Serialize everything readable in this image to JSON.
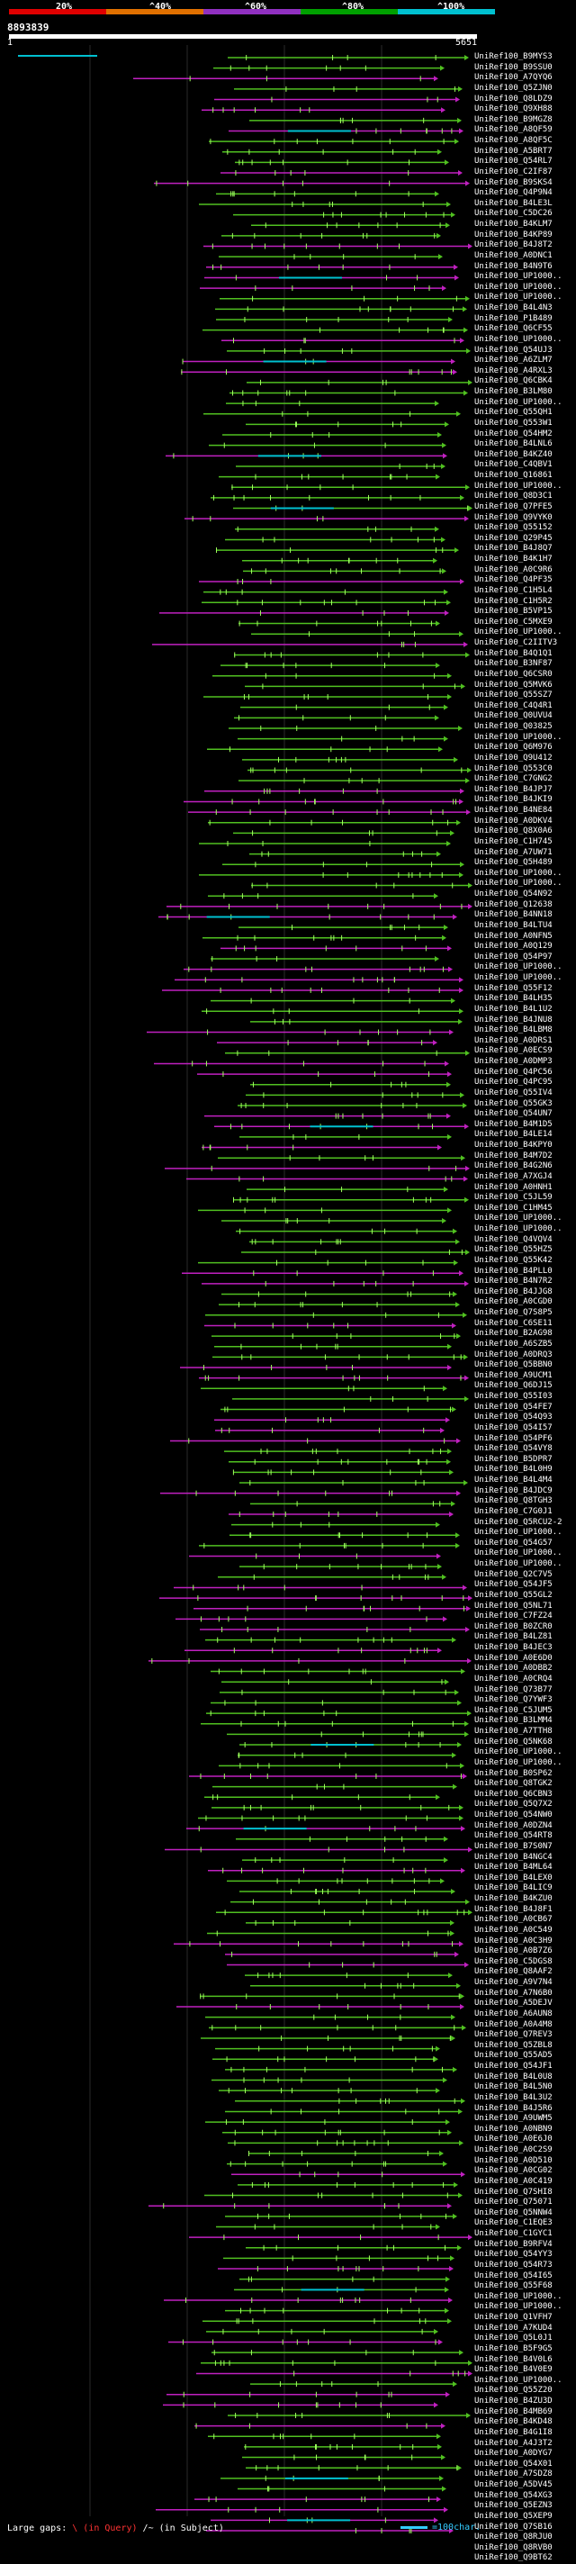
{
  "legend": {
    "labels": [
      "20%",
      "^40%",
      "^60%",
      "^80%",
      "^100%"
    ],
    "colors": [
      "#e00000",
      "#e07000",
      "#9030c0",
      "#00a000",
      "#00c0d0"
    ]
  },
  "query": {
    "id": "8893839",
    "start": "1",
    "end": "5651"
  },
  "hits": [
    "UniRef100_B9MYS3",
    "UniRef100_B9SSU0",
    "UniRef100_A7QYQ6",
    "UniRef100_Q5ZJN0",
    "UniRef100_Q8LDZ9",
    "UniRef100_Q9XH88",
    "UniRef100_B9MGZ8",
    "UniRef100_A8QF59",
    "UniRef100_A8QF5C",
    "UniRef100_A5BRT7",
    "UniRef100_Q54RL7",
    "UniRef100_C2IF87",
    "UniRef100_B9SKS4",
    "UniRef100_Q4P9N4",
    "UniRef100_B4LE3L",
    "UniRef100_C5DC26",
    "UniRef100_B4KLM7",
    "UniRef100_B4KP89",
    "UniRef100_B4J8T2",
    "UniRef100_A0DNC1",
    "UniRef100_B4N9T6",
    "UniRef100_UP1000..",
    "UniRef100_UP1000..",
    "UniRef100_UP1000..",
    "UniRef100_B4L4N3",
    "UniRef100_P1B489",
    "UniRef100_Q6CF55",
    "UniRef100_UP1000..",
    "UniRef100_Q54UJ3",
    "UniRef100_A6ZLM7",
    "UniRef100_A4RXL3",
    "UniRef100_Q6CBK4",
    "UniRef100_B3LM80",
    "UniRef100_UP1000..",
    "UniRef100_Q55QH1",
    "UniRef100_Q553W1",
    "UniRef100_Q54HM2",
    "UniRef100_B4LNL6",
    "UniRef100_B4KZ40",
    "UniRef100_C4QBV1",
    "UniRef100_Q16861",
    "UniRef100_UP1000..",
    "UniRef100_Q8D3C1",
    "UniRef100_Q7PFE5",
    "UniRef100_Q9VYK0",
    "UniRef100_Q55152",
    "UniRef100_Q29P45",
    "UniRef100_B4J8Q7",
    "UniRef100_B4K1H7",
    "UniRef100_A0C9R6",
    "UniRef100_Q4PF35",
    "UniRef100_C1H5L4",
    "UniRef100_C1H5R2",
    "UniRef100_B5VP15",
    "UniRef100_C5MXE9",
    "UniRef100_UP1000..",
    "UniRef100_C2IITV3",
    "UniRef100_B4Q1Q1",
    "UniRef100_B3NF87",
    "UniRef100_Q6CSR0",
    "UniRef100_Q5MVK6",
    "UniRef100_Q55SZ7",
    "UniRef100_C4Q4R1",
    "UniRef100_Q0UVU4",
    "UniRef100_Q03825",
    "UniRef100_UP1000..",
    "UniRef100_Q6M976",
    "UniRef100_Q9U412",
    "UniRef100_Q553C0",
    "UniRef100_C7GNG2",
    "UniRef100_B4JPJ7",
    "UniRef100_B4JKI9",
    "UniRef100_B4NE84",
    "UniRef100_A0DKV4",
    "UniRef100_Q8X0A6",
    "UniRef100_C1H745",
    "UniRef100_A7UW71",
    "UniRef100_Q5H489",
    "UniRef100_UP1000..",
    "UniRef100_UP1000..",
    "UniRef100_Q54N92",
    "UniRef100_Q12638",
    "UniRef100_B4NN18",
    "UniRef100_B4LTU4",
    "UniRef100_A0NFN5",
    "UniRef100_A0Q129",
    "UniRef100_Q54P97",
    "UniRef100_UP1000..",
    "UniRef100_UP1000..",
    "UniRef100_Q55F12",
    "UniRef100_B4LH35",
    "UniRef100_B4L1U2",
    "UniRef100_B4JNU8",
    "UniRef100_B4LBM8",
    "UniRef100_A0DRS1",
    "UniRef100_A0ECS9",
    "UniRef100_A0DMP3",
    "UniRef100_Q4PC56",
    "UniRef100_Q4PC95",
    "UniRef100_Q55IV4",
    "UniRef100_Q55GK3",
    "UniRef100_Q54UN7",
    "UniRef100_B4M1D5",
    "UniRef100_B4LE14",
    "UniRef100_B4KPY0",
    "UniRef100_B4M7D2",
    "UniRef100_B4G2N6",
    "UniRef100_A7XGJ4",
    "UniRef100_A0HNH1",
    "UniRef100_C5JL59",
    "UniRef100_C1HM45",
    "UniRef100_UP1000..",
    "UniRef100_UP1000..",
    "UniRef100_Q4VQV4",
    "UniRef100_Q55HZ5",
    "UniRef100_Q55K42",
    "UniRef100_B4PLL0",
    "UniRef100_B4N7R2",
    "UniRef100_B4JJG8",
    "UniRef100_A0CGD0",
    "UniRef100_Q7S8P5",
    "UniRef100_C6SE11",
    "UniRef100_B2AG98",
    "UniRef100_A6SZB5",
    "UniRef100_A0DRQ3",
    "UniRef100_Q5BBN0",
    "UniRef100_A9UCM1",
    "UniRef100_Q6DJ15",
    "UniRef100_Q55I03",
    "UniRef100_Q54FE7",
    "UniRef100_Q54Q93",
    "UniRef100_Q54I57",
    "UniRef100_Q54PF6",
    "UniRef100_Q54VY8",
    "UniRef100_B5DPR7",
    "UniRef100_B4L0H9",
    "UniRef100_B4L4M4",
    "UniRef100_B4JDC9",
    "UniRef100_Q8TGH3",
    "UniRef100_C7G0J1",
    "UniRef100_Q5RCU2-2",
    "UniRef100_UP1000..",
    "UniRef100_Q54G57",
    "UniRef100_UP1000..",
    "UniRef100_UP1000..",
    "UniRef100_Q2C7V5",
    "UniRef100_Q54JF5",
    "UniRef100_Q55GL2",
    "UniRef100_Q5NL71",
    "UniRef100_C7FZ24",
    "UniRef100_B0ZCR0",
    "UniRef100_B4LZ81",
    "UniRef100_B4JEC3",
    "UniRef100_A0E6D0",
    "UniRef100_A0DBB2",
    "UniRef100_A0CRQ4",
    "UniRef100_Q73B77",
    "UniRef100_Q7YWF3",
    "UniRef100_C5JUM5",
    "UniRef100_B3LMM4",
    "UniRef100_A7TTH8",
    "UniRef100_Q5NK68",
    "UniRef100_UP1000..",
    "UniRef100_UP1000..",
    "UniRef100_B0SP62",
    "UniRef100_Q8TGK2",
    "UniRef100_Q6CBN3",
    "UniRef100_Q5Q7X2",
    "UniRef100_Q54NW0",
    "UniRef100_A0DZN4",
    "UniRef100_Q54RT8",
    "UniRef100_B7S0N7",
    "UniRef100_B4NGC4",
    "UniRef100_B4ML64",
    "UniRef100_B4LEX0",
    "UniRef100_B4LIC9",
    "UniRef100_B4KZU0",
    "UniRef100_B4J8F1",
    "UniRef100_A0CB67",
    "UniRef100_A0C549",
    "UniRef100_A0C3H9",
    "UniRef100_A0B7Z6",
    "UniRef100_C5DGS8",
    "UniRef100_Q8AAF2",
    "UniRef100_A9V7N4",
    "UniRef100_A7N6B0",
    "UniRef100_A5DEJV",
    "UniRef100_A6AUN8",
    "UniRef100_A0A4M8",
    "UniRef100_Q7REV3",
    "UniRef100_Q5ZBL8",
    "UniRef100_Q55AD5",
    "UniRef100_Q54JF1",
    "UniRef100_B4L0U8",
    "UniRef100_B4L5N0",
    "UniRef100_B4L3U2",
    "UniRef100_B4J5R6",
    "UniRef100_A9UWM5",
    "UniRef100_A0NBN9",
    "UniRef100_A0E6J0",
    "UniRef100_A0C2S9",
    "UniRef100_A0D510",
    "UniRef100_A0CG02",
    "UniRef100_A0C419",
    "UniRef100_Q7SHI8",
    "UniRef100_Q75071",
    "UniRef100_Q5NNW4",
    "UniRef100_C1EQE3",
    "UniRef100_C1GYC1",
    "UniRef100_B9RFV4",
    "UniRef100_Q54YY3",
    "UniRef100_Q54R73",
    "UniRef100_Q54I65",
    "UniRef100_Q55F68",
    "UniRef100_UP1000..",
    "UniRef100_UP1000..",
    "UniRef100_Q1VFH7",
    "UniRef100_A7KUD4",
    "UniRef100_Q5L0J1",
    "UniRef100_B5F9G5",
    "UniRef100_B4V0L6",
    "UniRef100_B4V0E9",
    "UniRef100_UP1000..",
    "UniRef100_Q55Z20",
    "UniRef100_B4ZU3D",
    "UniRef100_B4MB69",
    "UniRef100_B4KD48",
    "UniRef100_B4G1I8",
    "UniRef100_A4J3T2",
    "UniRef100_A0DYG7",
    "UniRef100_Q54X01",
    "UniRef100_A7SDZ8",
    "UniRef100_A5DV45",
    "UniRef100_Q54XG3",
    "UniRef100_Q5EZN3",
    "UniRef100_Q5XEP9",
    "UniRef100_Q7SB16",
    "UniRef100_Q8RJU0",
    "UniRef100_Q8RVB0",
    "UniRef100_Q9BT62"
  ],
  "footer": {
    "gaps_label": "Large gaps:",
    "query_gap": "\\ (in Query)",
    "subject_gap": "/~ (in Subject)",
    "scale_label": "=100char."
  },
  "chart_data": {
    "type": "alignment-overview",
    "query_range": [
      1,
      5651
    ],
    "identity_bins": [
      "20%",
      "40%",
      "60%",
      "80%",
      "100%"
    ],
    "bin_colors": [
      "#e00000",
      "#e07000",
      "#9030c0",
      "#00a000",
      "#00c0d0"
    ]
  }
}
